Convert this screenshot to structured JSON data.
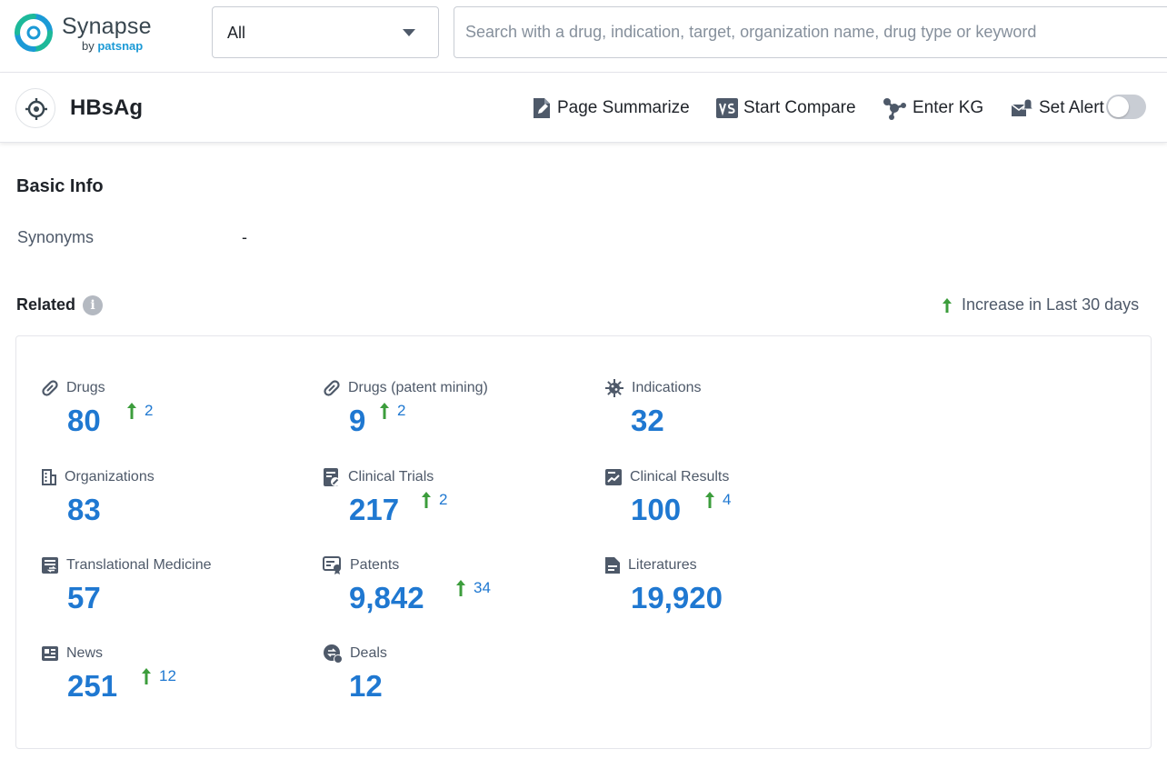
{
  "app": {
    "logo_name": "Synapse",
    "logo_by": "by",
    "logo_brand": "patsnap",
    "brand_colors": {
      "teal": "#1db99a",
      "blue": "#1b9ad6",
      "text": "#38464f"
    }
  },
  "search": {
    "scope_value": "All",
    "placeholder": "Search with a drug, indication, target, organization name, drug type or keyword"
  },
  "entity": {
    "title": "HBsAg",
    "icon": "target-icon"
  },
  "actions": {
    "summarize": {
      "label": "Page Summarize",
      "icon": "page-edit-icon"
    },
    "compare": {
      "label": "Start Compare",
      "icon": "vs-icon"
    },
    "kg": {
      "label": "Enter KG",
      "icon": "graph-nodes-icon"
    },
    "alert": {
      "label": "Set Alert",
      "icon": "alert-mail-icon",
      "enabled": false
    }
  },
  "basic_info": {
    "title": "Basic Info",
    "synonyms_label": "Synonyms",
    "synonyms_value": "-"
  },
  "related": {
    "title": "Related",
    "legend": "Increase in Last 30 days",
    "accent_color": "#1f78d1",
    "increase_color": "#3c9d3c",
    "stats": [
      {
        "key": "drugs",
        "label": "Drugs",
        "count": "80",
        "increase": "2",
        "icon": "pill-icon"
      },
      {
        "key": "drugs-patent-mining",
        "label": "Drugs (patent mining)",
        "count": "9",
        "increase": "2",
        "icon": "pill-icon"
      },
      {
        "key": "indications",
        "label": "Indications",
        "count": "32",
        "increase": null,
        "icon": "virus-icon"
      },
      {
        "key": "organizations",
        "label": "Organizations",
        "count": "83",
        "increase": null,
        "icon": "building-icon"
      },
      {
        "key": "clinical-trials",
        "label": "Clinical Trials",
        "count": "217",
        "increase": "2",
        "icon": "clipboard-icon"
      },
      {
        "key": "clinical-results",
        "label": "Clinical Results",
        "count": "100",
        "increase": "4",
        "icon": "chart-report-icon"
      },
      {
        "key": "translational-medicine",
        "label": "Translational Medicine",
        "count": "57",
        "increase": null,
        "icon": "document-transfer-icon"
      },
      {
        "key": "patents",
        "label": "Patents",
        "count": "9,842",
        "increase": "34",
        "icon": "certificate-icon"
      },
      {
        "key": "literatures",
        "label": "Literatures",
        "count": "19,920",
        "increase": null,
        "icon": "file-text-icon"
      },
      {
        "key": "news",
        "label": "News",
        "count": "251",
        "increase": "12",
        "icon": "newspaper-icon"
      },
      {
        "key": "deals",
        "label": "Deals",
        "count": "12",
        "increase": null,
        "icon": "deal-coin-icon"
      }
    ]
  }
}
